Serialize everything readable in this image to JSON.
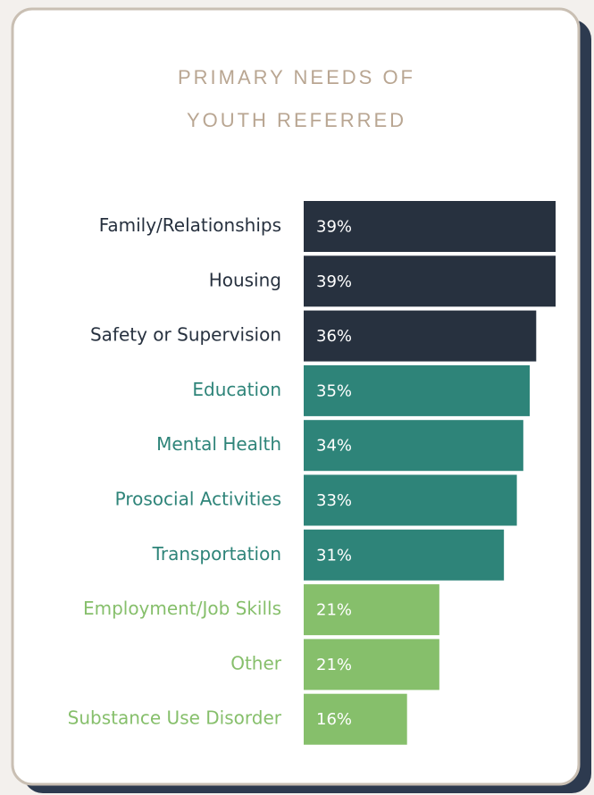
{
  "chart_data": {
    "type": "bar",
    "orientation": "horizontal",
    "title": [
      "PRIMARY NEEDS OF",
      "YOUTH REFERRED"
    ],
    "categories": [
      "Family/Relationships",
      "Housing",
      "Safety or Supervision",
      "Education",
      "Mental Health",
      "Prosocial Activities",
      "Transportation",
      "Employment/Job Skills",
      "Other",
      "Substance Use Disorder"
    ],
    "values": [
      39,
      39,
      36,
      35,
      34,
      33,
      31,
      21,
      21,
      16
    ],
    "value_labels": [
      "39%",
      "39%",
      "36%",
      "35%",
      "34%",
      "33%",
      "31%",
      "21%",
      "21%",
      "16%"
    ],
    "colors": [
      "#27313f",
      "#27313f",
      "#27313f",
      "#2e8479",
      "#2e8479",
      "#2e8479",
      "#2e8479",
      "#86bf6b",
      "#86bf6b",
      "#86bf6b"
    ]
  }
}
